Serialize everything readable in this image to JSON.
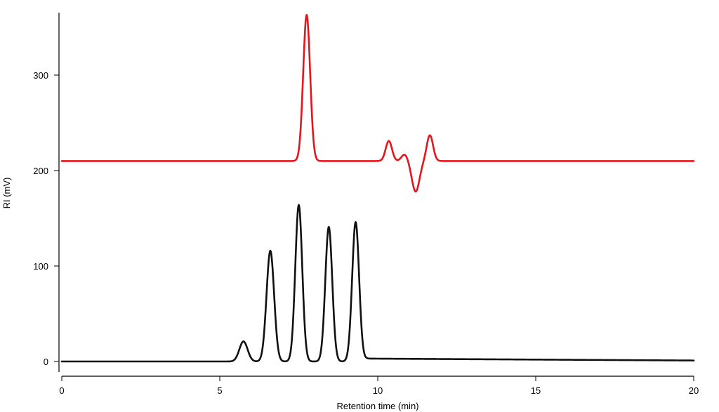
{
  "chart_data": {
    "type": "line",
    "title": "",
    "xlabel": "Retention time (min)",
    "ylabel": "RI (mV)",
    "xlim": [
      0,
      20
    ],
    "ylim": [
      -15,
      365
    ],
    "xticks": [
      0,
      5,
      10,
      15,
      20
    ],
    "yticks": [
      0,
      100,
      200,
      300
    ],
    "grid": false,
    "legend": "none",
    "series": [
      {
        "color": "#e8141b",
        "baseline": 210,
        "peaks": [
          {
            "x": 7.75,
            "height": 153,
            "width": 0.11
          },
          {
            "x": 10.35,
            "height": 21,
            "width": 0.1
          },
          {
            "x": 10.85,
            "height": 7,
            "width": 0.1
          },
          {
            "x": 11.2,
            "height": -32,
            "width": 0.12
          },
          {
            "x": 11.65,
            "height": 27,
            "width": 0.1
          }
        ],
        "x": [
          0,
          7.0,
          7.5,
          7.75,
          8.0,
          8.5,
          10.0,
          10.35,
          10.6,
          10.85,
          11.0,
          11.2,
          11.45,
          11.65,
          12.0,
          20
        ],
        "y": [
          210,
          210,
          215,
          362,
          215,
          210,
          210,
          231,
          213,
          217,
          207,
          180,
          205,
          237,
          211,
          210
        ]
      },
      {
        "color": "#111111",
        "baseline": 0,
        "peaks": [
          {
            "x": 5.75,
            "height": 21,
            "width": 0.13
          },
          {
            "x": 6.6,
            "height": 116,
            "width": 0.12
          },
          {
            "x": 7.5,
            "height": 164,
            "width": 0.11
          },
          {
            "x": 8.45,
            "height": 141,
            "width": 0.11
          },
          {
            "x": 9.3,
            "height": 146,
            "width": 0.11
          }
        ],
        "tail": {
          "start": 9.7,
          "level": 3,
          "end": 20,
          "end_level": 1
        },
        "x": [
          0,
          5.2,
          5.75,
          6.1,
          6.6,
          7.0,
          7.5,
          8.0,
          8.45,
          8.9,
          9.3,
          9.7,
          20
        ],
        "y": [
          0,
          0,
          22,
          5,
          118,
          8,
          168,
          5,
          145,
          5,
          150,
          3,
          0
        ]
      }
    ]
  }
}
